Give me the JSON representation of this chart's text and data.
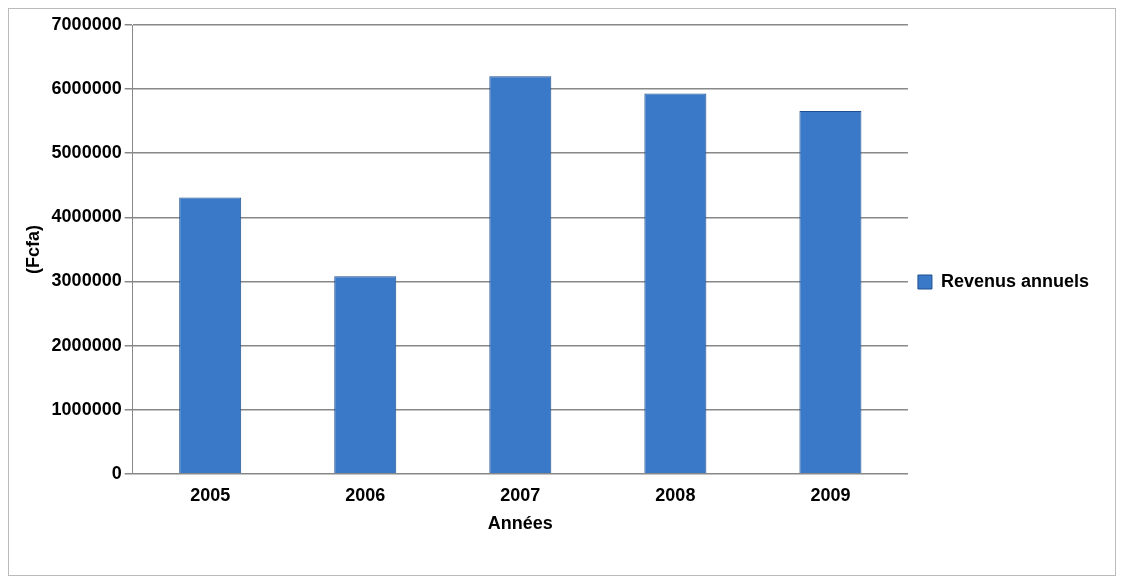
{
  "chart_data": {
    "type": "bar",
    "xlabel": "Années",
    "ylabel": "(Fcfa)",
    "categories": [
      "2005",
      "2006",
      "2007",
      "2008",
      "2009"
    ],
    "series": [
      {
        "name": "Revenus annuels",
        "color": "#3a78c8",
        "values": [
          4310000,
          3080000,
          6200000,
          5930000,
          5660000
        ]
      }
    ],
    "ylim": [
      0,
      7000000
    ],
    "yticks": [
      0,
      1000000,
      2000000,
      3000000,
      4000000,
      5000000,
      6000000,
      7000000
    ],
    "grid": "y",
    "legend": "right"
  }
}
